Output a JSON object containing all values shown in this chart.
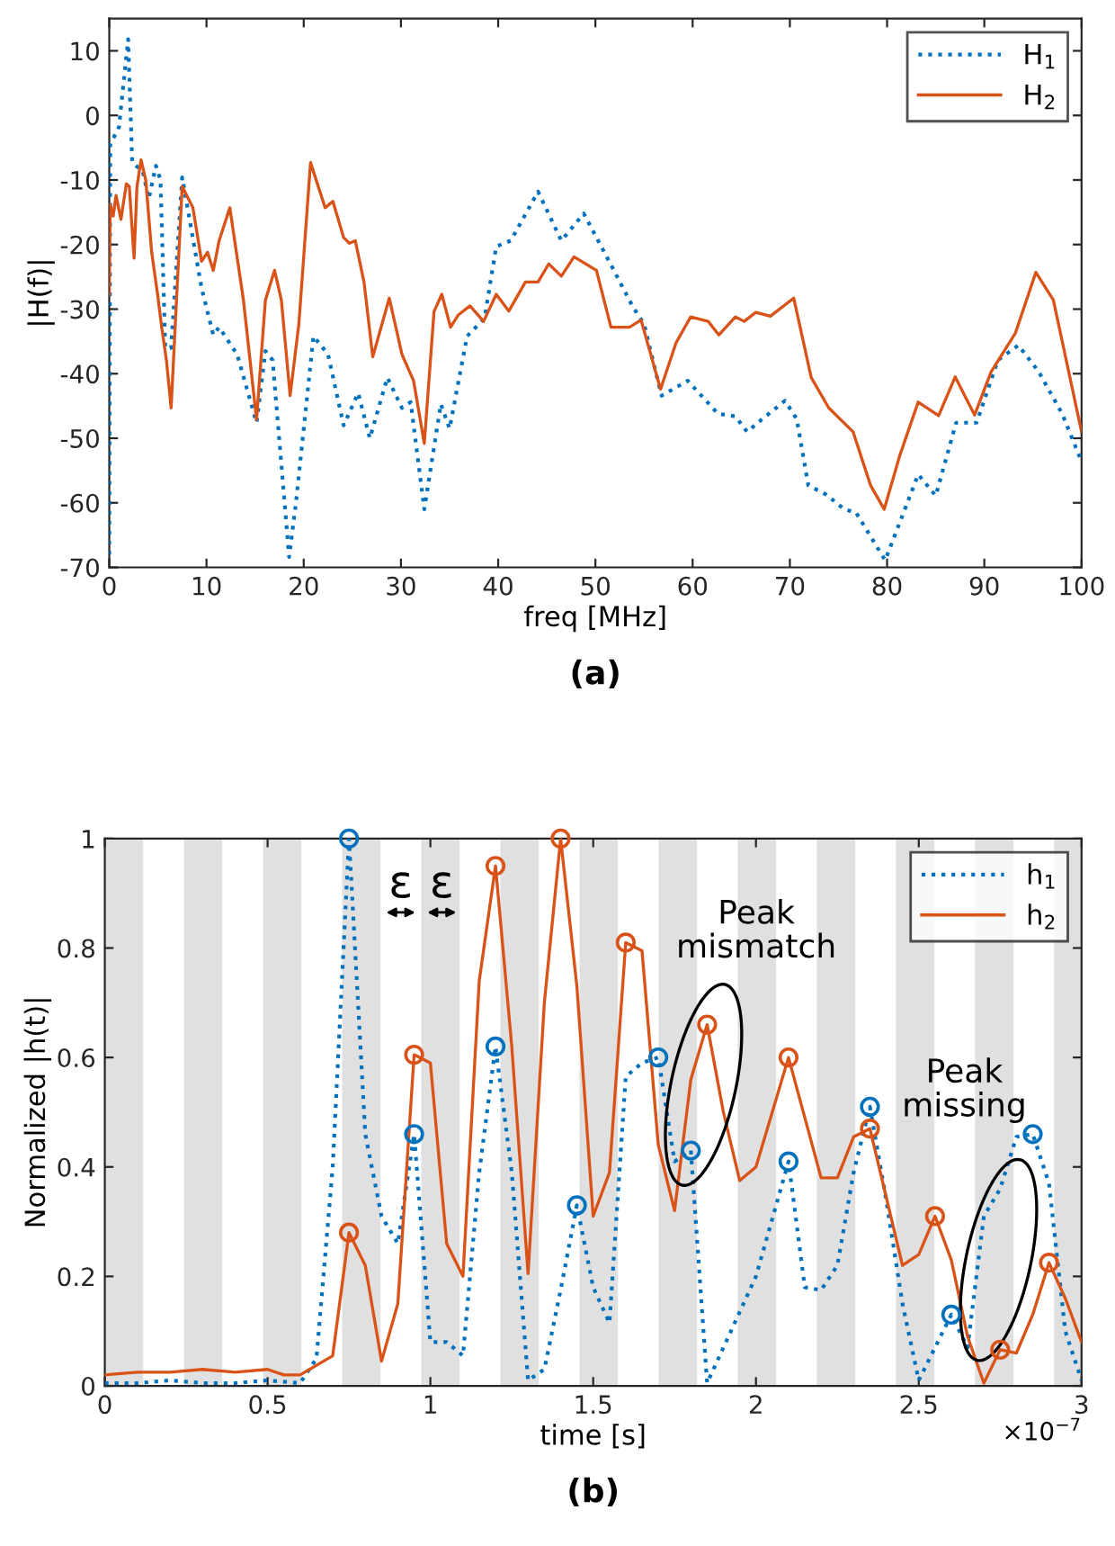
{
  "chart_data": [
    {
      "type": "line",
      "title": "(a)",
      "xlabel": "freq [MHz]",
      "ylabel": "|H(f)|",
      "xlim": [
        0,
        100
      ],
      "xticks": [
        0,
        10,
        20,
        30,
        40,
        50,
        60,
        70,
        80,
        90,
        100
      ],
      "ylim": [
        -70,
        15
      ],
      "yticks": [
        -70,
        -60,
        -50,
        -40,
        -30,
        -20,
        -10,
        0,
        10
      ],
      "legend": "top right",
      "grid": false,
      "series": [
        {
          "name": "H$_{1}$",
          "color": "#0072bd",
          "line_style": "dotted",
          "x": [
            0,
            0.1,
            1.0,
            1.94,
            2.36,
            3.45,
            4.06,
            4.8,
            5.27,
            5.76,
            6.36,
            7.5,
            9.5,
            10.7,
            11.3,
            13.15,
            15.15,
            16.06,
            16.8,
            18.5,
            19.2,
            21.0,
            22.5,
            24.1,
            25.6,
            26.8,
            28.6,
            30.1,
            31.0,
            32.4,
            34.1,
            35.0,
            36.8,
            38.6,
            39.8,
            41.3,
            44.1,
            46.5,
            48.8,
            51.9,
            53.8,
            55.0,
            56.8,
            59.5,
            62.6,
            64.4,
            65.6,
            67.1,
            69.5,
            70.7,
            71.9,
            73.7,
            75.6,
            76.8,
            79.8,
            81.6,
            83.2,
            85.0,
            87.1,
            89.2,
            91.4,
            93.5,
            95.6,
            98.0,
            100
          ],
          "values": [
            -68,
            -4.5,
            -1.8,
            11.8,
            -7.3,
            -8.7,
            -12.9,
            -7.8,
            -10,
            -36,
            -36,
            -9.6,
            -26.8,
            -34,
            -32.8,
            -37,
            -47.6,
            -36.5,
            -37.9,
            -68.4,
            -60,
            -34.2,
            -37,
            -48,
            -43,
            -50,
            -40.6,
            -45.3,
            -44.4,
            -61,
            -44.7,
            -48.5,
            -34.2,
            -31.4,
            -20.3,
            -19.4,
            -11.8,
            -19.4,
            -15.2,
            -24,
            -29.5,
            -32.3,
            -43.4,
            -41.1,
            -46.2,
            -46.6,
            -49,
            -47.1,
            -44.2,
            -47,
            -57.3,
            -58.7,
            -61,
            -61.5,
            -68.9,
            -61.9,
            -55.6,
            -58.9,
            -47.6,
            -47.6,
            -37.9,
            -35.6,
            -39.7,
            -46.2,
            -53.6
          ]
        },
        {
          "name": "H$_{2}$",
          "color": "#d95319",
          "line_style": "solid",
          "x": [
            0,
            0.1,
            0.4,
            0.7,
            1.2,
            1.76,
            2.06,
            2.55,
            2.85,
            3.27,
            3.76,
            4.36,
            4.97,
            5.39,
            5.88,
            6.36,
            7.5,
            8.6,
            9.5,
            10.1,
            10.7,
            11.3,
            12.4,
            13.8,
            15.15,
            16.06,
            17.0,
            17.7,
            18.6,
            19.5,
            20.7,
            22.2,
            23.0,
            24.1,
            24.7,
            25.3,
            26.2,
            27.1,
            28.8,
            30.1,
            31.3,
            32.4,
            33.4,
            34.2,
            35.1,
            35.9,
            37.1,
            38.5,
            39.8,
            41.1,
            42.8,
            44.1,
            45.2,
            46.5,
            47.8,
            50.1,
            51.6,
            53.5,
            54.7,
            56.7,
            58.3,
            59.8,
            61.6,
            62.7,
            64.4,
            65.3,
            66.5,
            68.0,
            70.4,
            72.2,
            74.0,
            76.5,
            78.3,
            79.7,
            81.3,
            83.2,
            85.3,
            87.0,
            89.0,
            90.7,
            93.2,
            95.3,
            97.1,
            100
          ],
          "values": [
            -27.7,
            -13.8,
            -15.6,
            -12.4,
            -16.1,
            -10.6,
            -11,
            -22.1,
            -11,
            -6.9,
            -10.1,
            -21.2,
            -27.7,
            -32.8,
            -37.9,
            -45.3,
            -11,
            -14.3,
            -22.6,
            -21.2,
            -24,
            -19.4,
            -14.3,
            -28.6,
            -47.1,
            -28.6,
            -24,
            -28.6,
            -43.4,
            -32.3,
            -7.3,
            -14.3,
            -13.3,
            -18.9,
            -19.8,
            -19.4,
            -25.8,
            -37.4,
            -28.3,
            -37,
            -41.1,
            -50.8,
            -30.4,
            -27.7,
            -32.8,
            -30.9,
            -29.5,
            -31.9,
            -27.7,
            -30.3,
            -25.8,
            -25.8,
            -23,
            -24.9,
            -21.9,
            -24,
            -32.8,
            -32.8,
            -31.7,
            -42.4,
            -35.2,
            -31.2,
            -31.9,
            -34,
            -31.2,
            -31.9,
            -30.5,
            -31.1,
            -28.3,
            -40.6,
            -45.3,
            -49,
            -57.3,
            -61,
            -52.7,
            -44.4,
            -46.5,
            -40.5,
            -46.4,
            -39.7,
            -33.7,
            -24.3,
            -28.6,
            -49
          ]
        }
      ]
    },
    {
      "type": "line",
      "title": "(b)",
      "xlabel": "time [s]",
      "ylabel": "Normalized |h(t)|",
      "xlim": [
        0,
        3
      ],
      "xticks": [
        0,
        0.5,
        1,
        1.5,
        2,
        2.5,
        3
      ],
      "ylim": [
        0,
        1
      ],
      "yticks": [
        0,
        0.2,
        0.4,
        0.6,
        0.8,
        1
      ],
      "legend": "top right",
      "grid": false,
      "annotations": [
        "×10$^{−7}$",
        "ε",
        "ε",
        "Peak\nmismatch",
        "Peak\nmissing"
      ],
      "bands": [
        {
          "axis": "x",
          "from": 0,
          "to": 0.118,
          "color": "#e0e0e0"
        },
        {
          "axis": "x",
          "from": 0.243,
          "to": 0.361,
          "color": "#e0e0e0"
        },
        {
          "axis": "x",
          "from": 0.486,
          "to": 0.604,
          "color": "#e0e0e0"
        },
        {
          "axis": "x",
          "from": 0.729,
          "to": 0.847,
          "color": "#e0e0e0"
        },
        {
          "axis": "x",
          "from": 0.972,
          "to": 1.09,
          "color": "#e0e0e0"
        },
        {
          "axis": "x",
          "from": 1.215,
          "to": 1.333,
          "color": "#e0e0e0"
        },
        {
          "axis": "x",
          "from": 1.458,
          "to": 1.576,
          "color": "#e0e0e0"
        },
        {
          "axis": "x",
          "from": 1.701,
          "to": 1.819,
          "color": "#e0e0e0"
        },
        {
          "axis": "x",
          "from": 1.944,
          "to": 2.062,
          "color": "#e0e0e0"
        },
        {
          "axis": "x",
          "from": 2.187,
          "to": 2.305,
          "color": "#e0e0e0"
        },
        {
          "axis": "x",
          "from": 2.43,
          "to": 2.548,
          "color": "#e0e0e0"
        },
        {
          "axis": "x",
          "from": 2.673,
          "to": 2.791,
          "color": "#e0e0e0"
        },
        {
          "axis": "x",
          "from": 2.916,
          "to": 3.0,
          "color": "#e0e0e0"
        }
      ],
      "series": [
        {
          "name": "h$_{1}$",
          "color": "#0072bd",
          "line_style": "dotted",
          "x": [
            0,
            0.1,
            0.2,
            0.3,
            0.4,
            0.5,
            0.6,
            0.65,
            0.7,
            0.75,
            0.8,
            0.85,
            0.9,
            0.95,
            1.0,
            1.05,
            1.1,
            1.15,
            1.2,
            1.25,
            1.3,
            1.35,
            1.4,
            1.45,
            1.5,
            1.55,
            1.6,
            1.65,
            1.7,
            1.75,
            1.8,
            1.85,
            2.0,
            2.1,
            2.15,
            2.2,
            2.25,
            2.3,
            2.35,
            2.4,
            2.45,
            2.5,
            2.55,
            2.6,
            2.65,
            2.7,
            2.75,
            2.8,
            2.85,
            2.9,
            2.95,
            3.0
          ],
          "values": [
            0.005,
            0.005,
            0.01,
            0.005,
            0.005,
            0.01,
            0.005,
            0.05,
            0.4,
            1.0,
            0.46,
            0.31,
            0.26,
            0.46,
            0.08,
            0.08,
            0.055,
            0.39,
            0.62,
            0.39,
            0.01,
            0.03,
            0.175,
            0.33,
            0.18,
            0.115,
            0.565,
            0.59,
            0.6,
            0.41,
            0.43,
            0.005,
            0.2,
            0.41,
            0.18,
            0.175,
            0.22,
            0.39,
            0.51,
            0.34,
            0.15,
            0.01,
            0.07,
            0.13,
            0.07,
            0.31,
            0.36,
            0.455,
            0.46,
            0.37,
            0.1,
            0.01
          ]
        },
        {
          "name": "h$_{2}$",
          "color": "#d95319",
          "line_style": "solid",
          "x": [
            0,
            0.1,
            0.2,
            0.3,
            0.4,
            0.5,
            0.55,
            0.6,
            0.7,
            0.75,
            0.8,
            0.85,
            0.9,
            0.95,
            1.0,
            1.05,
            1.1,
            1.15,
            1.2,
            1.25,
            1.3,
            1.35,
            1.4,
            1.45,
            1.5,
            1.55,
            1.6,
            1.65,
            1.7,
            1.75,
            1.8,
            1.85,
            1.9,
            1.95,
            2.0,
            2.1,
            2.2,
            2.25,
            2.3,
            2.35,
            2.45,
            2.5,
            2.55,
            2.6,
            2.65,
            2.7,
            2.75,
            2.8,
            2.85,
            2.9,
            2.95,
            3.0
          ],
          "values": [
            0.02,
            0.025,
            0.025,
            0.03,
            0.025,
            0.03,
            0.02,
            0.02,
            0.055,
            0.28,
            0.22,
            0.045,
            0.15,
            0.605,
            0.59,
            0.26,
            0.2,
            0.74,
            0.95,
            0.62,
            0.205,
            0.7,
            1.0,
            0.73,
            0.31,
            0.39,
            0.81,
            0.795,
            0.44,
            0.32,
            0.56,
            0.66,
            0.5,
            0.375,
            0.4,
            0.6,
            0.38,
            0.38,
            0.455,
            0.47,
            0.22,
            0.24,
            0.31,
            0.23,
            0.09,
            0.005,
            0.066,
            0.06,
            0.13,
            0.225,
            0.16,
            0.08
          ]
        },
        {
          "type": "scatter",
          "marker": "circle",
          "color": "#0072bd",
          "x": [
            0.75,
            0.95,
            1.2,
            1.45,
            1.7,
            1.8,
            2.1,
            2.35,
            2.6,
            2.85
          ],
          "values": [
            1.0,
            0.46,
            0.62,
            0.33,
            0.6,
            0.43,
            0.41,
            0.51,
            0.13,
            0.46
          ]
        },
        {
          "type": "scatter",
          "marker": "circle",
          "color": "#d95319",
          "x": [
            0.75,
            0.95,
            1.2,
            1.4,
            1.6,
            1.85,
            2.1,
            2.35,
            2.55,
            2.75,
            2.9
          ],
          "values": [
            0.28,
            0.605,
            0.95,
            1.0,
            0.81,
            0.66,
            0.6,
            0.47,
            0.31,
            0.066,
            0.225
          ]
        }
      ]
    }
  ]
}
